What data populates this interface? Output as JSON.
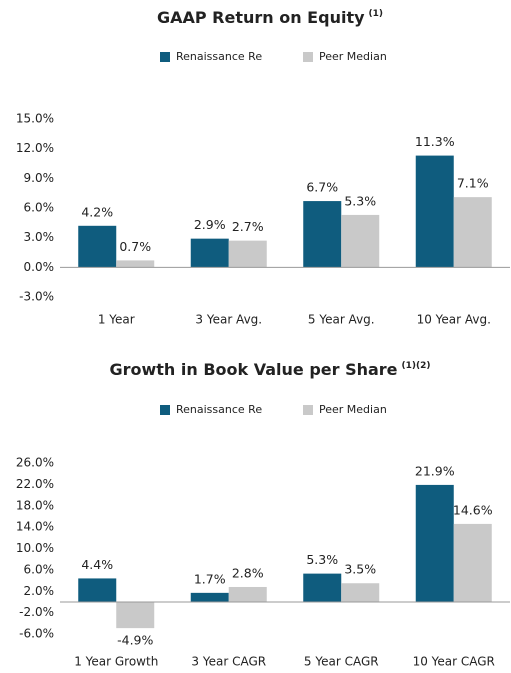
{
  "chart_data": [
    {
      "type": "bar",
      "title": "GAAP Return on Equity",
      "title_note": "(1)",
      "categories": [
        "1 Year",
        "3 Year Avg.",
        "5 Year Avg.",
        "10 Year Avg."
      ],
      "series": [
        {
          "name": "Renaissance Re",
          "color": "#0f5c7e",
          "values": [
            4.2,
            2.9,
            6.7,
            11.3
          ],
          "value_labels": [
            "4.2%",
            "2.9%",
            "6.7%",
            "11.3%"
          ]
        },
        {
          "name": "Peer Median",
          "color": "#c9c9c9",
          "values": [
            0.7,
            2.7,
            5.3,
            7.1
          ],
          "value_labels": [
            "0.7%",
            "2.7%",
            "5.3%",
            "7.1%"
          ]
        }
      ],
      "ylim": [
        -3,
        15
      ],
      "yticks": [
        {
          "value": -3,
          "label": "-3.0%"
        },
        {
          "value": 0,
          "label": "0.0%"
        },
        {
          "value": 3,
          "label": "3.0%"
        },
        {
          "value": 6,
          "label": "6.0%"
        },
        {
          "value": 9,
          "label": "9.0%"
        },
        {
          "value": 12,
          "label": "12.0%"
        },
        {
          "value": 15,
          "label": "15.0%"
        }
      ],
      "grid": false
    },
    {
      "type": "bar",
      "title": "Growth in Book Value per Share",
      "title_note": "(1)(2)",
      "categories": [
        "1 Year Growth",
        "3 Year CAGR",
        "5 Year CAGR",
        "10 Year CAGR"
      ],
      "series": [
        {
          "name": "Renaissance Re",
          "color": "#0f5c7e",
          "values": [
            4.4,
            1.7,
            5.3,
            21.9
          ],
          "value_labels": [
            "4.4%",
            "1.7%",
            "5.3%",
            "21.9%"
          ]
        },
        {
          "name": "Peer Median",
          "color": "#c9c9c9",
          "values": [
            -4.9,
            2.8,
            3.5,
            14.6
          ],
          "value_labels": [
            "-4.9%",
            "2.8%",
            "3.5%",
            "14.6%"
          ]
        }
      ],
      "ylim": [
        -6,
        26
      ],
      "yticks": [
        {
          "value": -6,
          "label": "-6.0%"
        },
        {
          "value": -2,
          "label": "-2.0%"
        },
        {
          "value": 2,
          "label": "2.0%"
        },
        {
          "value": 6,
          "label": "6.0%"
        },
        {
          "value": 10,
          "label": "10.0%"
        },
        {
          "value": 14,
          "label": "14.0%"
        },
        {
          "value": 18,
          "label": "18.0%"
        },
        {
          "value": 22,
          "label": "22.0%"
        },
        {
          "value": 26,
          "label": "26.0%"
        }
      ],
      "grid": false
    }
  ]
}
